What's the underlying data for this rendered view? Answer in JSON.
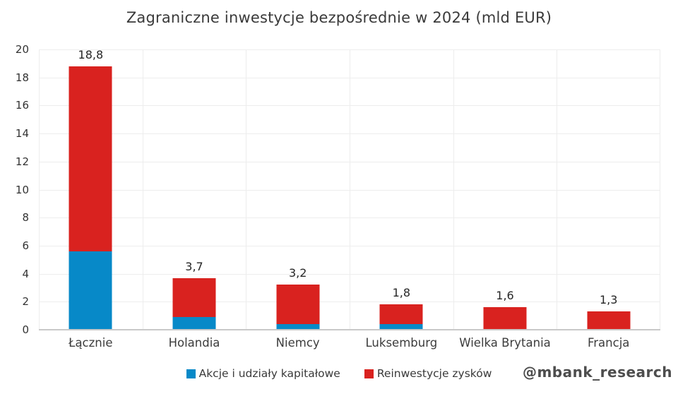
{
  "title": "Zagraniczne inwestycje bezpośrednie w 2024 (mld EUR)",
  "watermark": "@mbank_research",
  "chart_data": {
    "type": "bar",
    "stacked": true,
    "title": "Zagraniczne inwestycje bezpośrednie w 2024 (mld EUR)",
    "categories": [
      "Łącznie",
      "Holandia",
      "Niemcy",
      "Luksemburg",
      "Wielka Brytania",
      "Francja"
    ],
    "series": [
      {
        "name": "Akcje i udziały kapitałowe",
        "color": "#0789c8",
        "values": [
          5.6,
          0.9,
          0.4,
          0.4,
          0.0,
          0.0
        ]
      },
      {
        "name": "Reinwestycje zysków",
        "color": "#d9221f",
        "values": [
          13.2,
          2.8,
          2.8,
          1.4,
          1.6,
          1.3
        ]
      }
    ],
    "totals": [
      18.8,
      3.7,
      3.2,
      1.8,
      1.6,
      1.3
    ],
    "total_labels": [
      "18,8",
      "3,7",
      "3,2",
      "1,8",
      "1,6",
      "1,3"
    ],
    "xlabel": "",
    "ylabel": "",
    "ylim": [
      0,
      20
    ],
    "ytick_step": 2,
    "grid": true,
    "legend_position": "bottom"
  }
}
